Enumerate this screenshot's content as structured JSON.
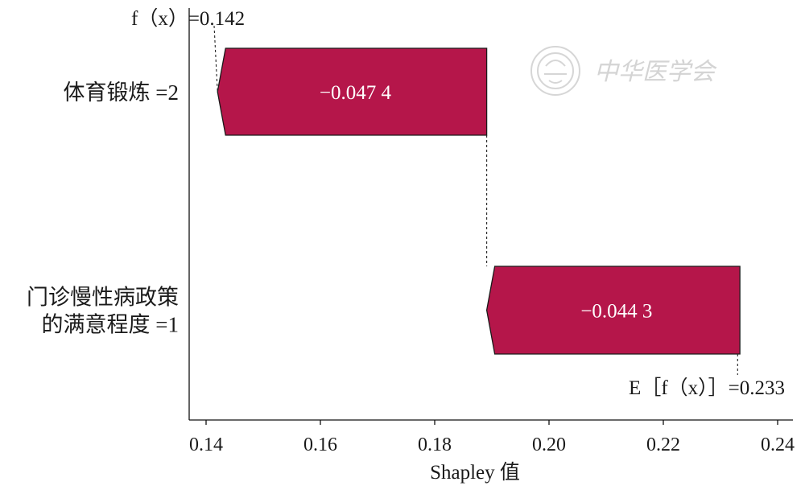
{
  "chart_data": {
    "type": "waterfall",
    "xlabel": "Shapley 值",
    "xlim": [
      0.14,
      0.24
    ],
    "xticks": [
      "0.14",
      "0.16",
      "0.18",
      "0.20",
      "0.22",
      "0.24"
    ],
    "base_label": "E［f（x）］=0.233",
    "base_value": 0.233,
    "output_label": "f（x）=0.142",
    "output_value": 0.142,
    "features": [
      {
        "lines": [
          "体育锻炼 =2"
        ],
        "start": 0.1891,
        "end": 0.142,
        "value_label": "−0.047 4"
      },
      {
        "lines": [
          "门诊慢性病政策",
          "的满意程度 =1"
        ],
        "start": 0.2334,
        "end": 0.1891,
        "value_label": "−0.044 3"
      }
    ],
    "bar_color": "#b5164a"
  },
  "watermark": {
    "text": "中华医学会",
    "emblem": "society-seal-icon"
  }
}
